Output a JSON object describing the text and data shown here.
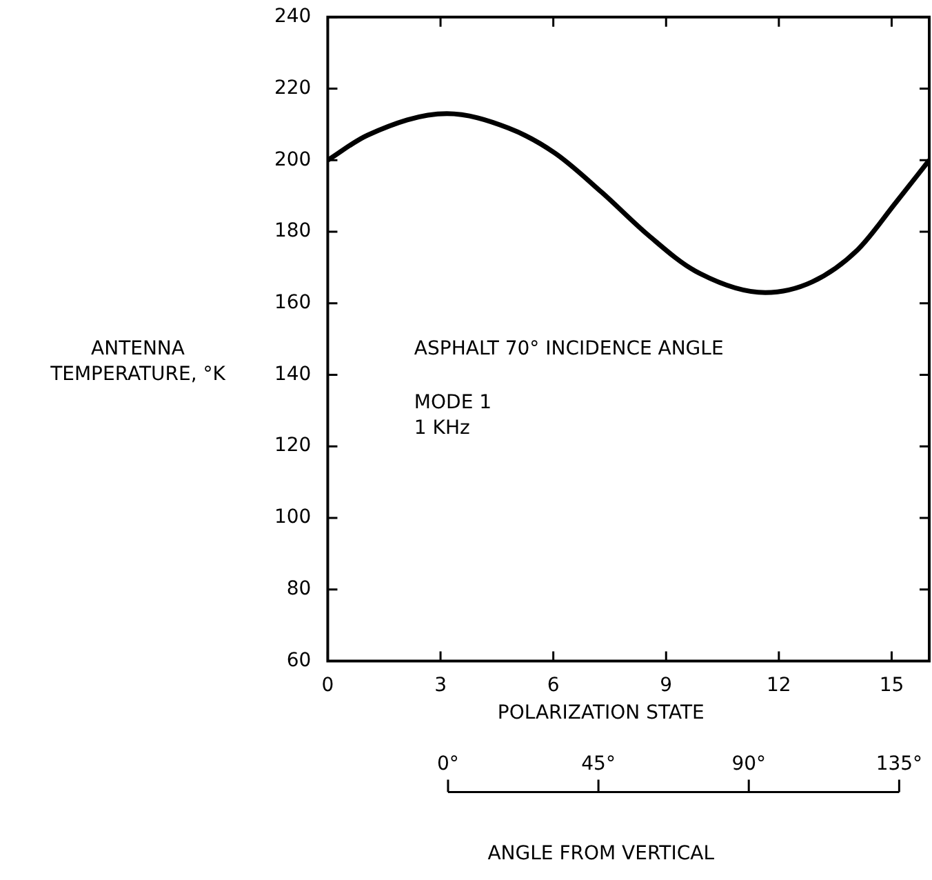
{
  "chart_data": {
    "type": "line",
    "x": [
      0,
      1.06,
      3.17,
      4.8,
      6.04,
      7.29,
      8.53,
      9.78,
      11.64,
      12.89,
      14.1,
      15.1,
      16
    ],
    "series": [
      {
        "color": "#000000",
        "values": [
          200,
          207,
          213,
          209,
          202,
          191,
          179,
          169,
          163,
          166,
          175,
          188,
          200
        ]
      }
    ],
    "xlim": [
      0,
      16
    ],
    "xticks": [
      0,
      3,
      6,
      9,
      12,
      15
    ],
    "ylim": [
      60,
      240
    ],
    "yticks": [
      60,
      80,
      100,
      120,
      140,
      160,
      180,
      200,
      220,
      240
    ],
    "x2lim": [
      0,
      135
    ],
    "x2ticks": [
      {
        "value": 0,
        "label": "0°"
      },
      {
        "value": 45,
        "label": "45°"
      },
      {
        "value": 90,
        "label": "90°"
      },
      {
        "value": 135,
        "label": "135°"
      }
    ],
    "xlabel": "POLARIZATION STATE",
    "x2label": "ANGLE FROM VERTICAL",
    "ylabel": "ANTENNA TEMPERATURE, °K",
    "annotations": [
      "ASPHALT 70° INCIDENCE ANGLE",
      "MODE 1",
      "1 KHz"
    ],
    "grid": false,
    "legend": false,
    "marker": "none",
    "line_style": "solid"
  }
}
